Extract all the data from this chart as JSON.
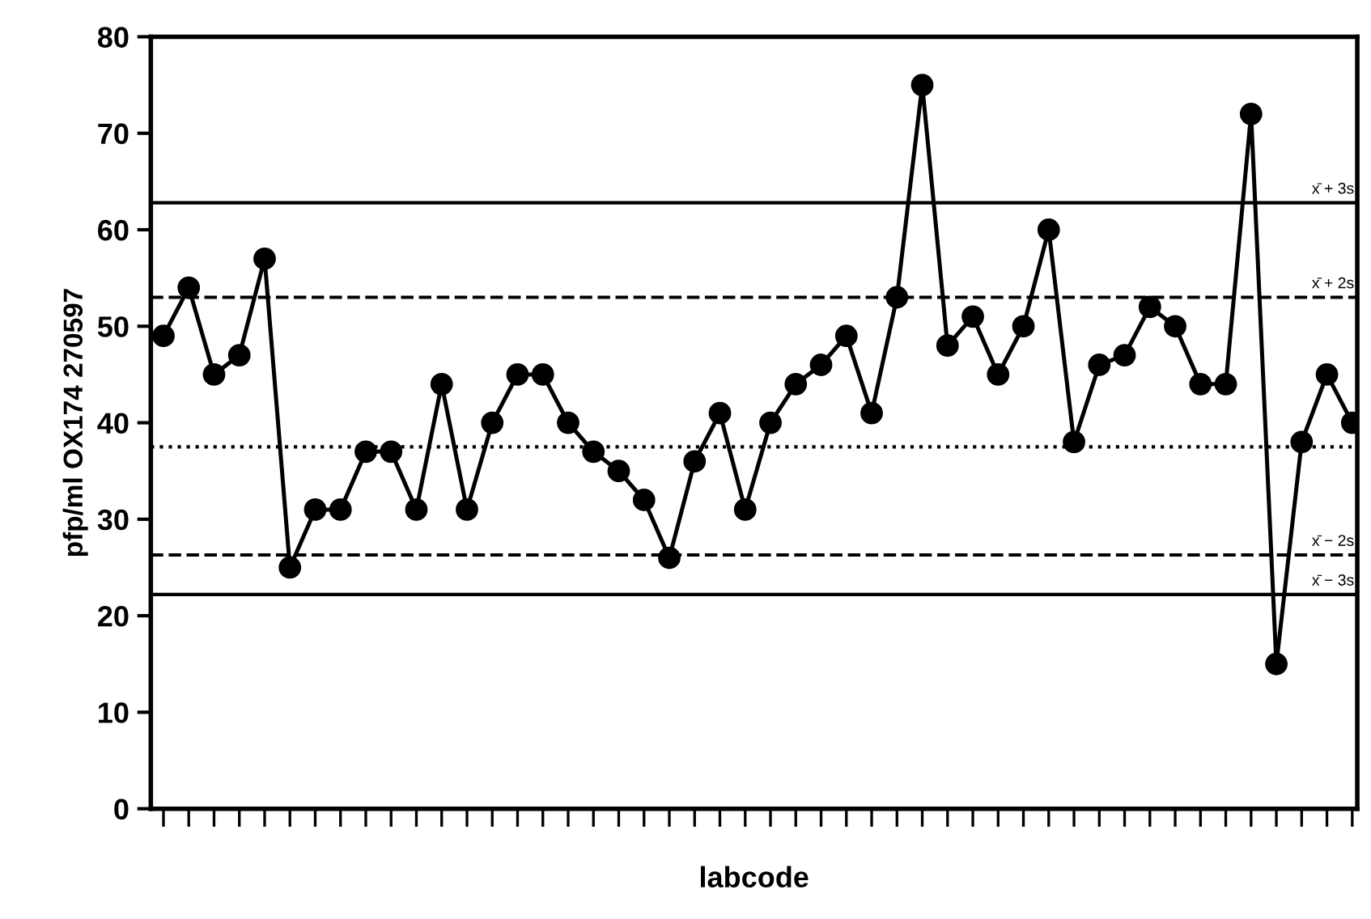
{
  "chart_data": {
    "type": "line",
    "xlabel": "labcode",
    "ylabel": "pfp/ml OX174 270597",
    "categories": [
      null,
      null,
      null,
      null,
      null,
      null,
      null,
      null,
      null,
      null,
      null,
      null,
      null,
      null,
      null,
      null,
      null,
      null,
      null,
      null,
      null,
      null,
      null,
      null,
      null,
      null,
      null,
      null,
      null,
      null,
      null,
      null,
      null,
      null,
      null,
      null,
      null,
      null,
      null,
      null,
      null,
      null,
      null,
      null,
      null,
      null,
      null,
      null
    ],
    "series": [
      {
        "color": "#000000",
        "values": [
          49,
          54,
          45,
          47,
          57,
          25,
          31,
          31,
          37,
          37,
          31,
          44,
          31,
          40,
          45,
          45,
          40,
          37,
          35,
          32,
          26,
          36,
          41,
          31,
          40,
          44,
          46,
          49,
          41,
          53,
          75,
          48,
          51,
          45,
          50,
          60,
          38,
          46,
          47,
          52,
          50,
          44,
          44,
          72,
          15,
          38,
          45,
          40
        ]
      }
    ],
    "ylim": [
      0,
      80
    ],
    "yticks": [
      0,
      10,
      20,
      30,
      40,
      50,
      60,
      70,
      80
    ],
    "ref_lines": [
      {
        "axis": "y",
        "value": 62.8,
        "label": "x̄ + 3s",
        "line_style": "solid",
        "color": "#000000"
      },
      {
        "axis": "y",
        "value": 53,
        "label": "x̄ + 2s",
        "line_style": "dashed",
        "color": "#000000"
      },
      {
        "axis": "y",
        "value": 37.5,
        "line_style": "dotted",
        "color": "#000000"
      },
      {
        "axis": "y",
        "value": 26.3,
        "label": "x̄ − 2s",
        "line_style": "dashed",
        "color": "#000000"
      },
      {
        "axis": "y",
        "value": 22.2,
        "label": "x̄ − 3s",
        "line_style": "solid",
        "color": "#000000"
      }
    ],
    "marker": "circle",
    "line_style": "solid",
    "grid": false
  }
}
